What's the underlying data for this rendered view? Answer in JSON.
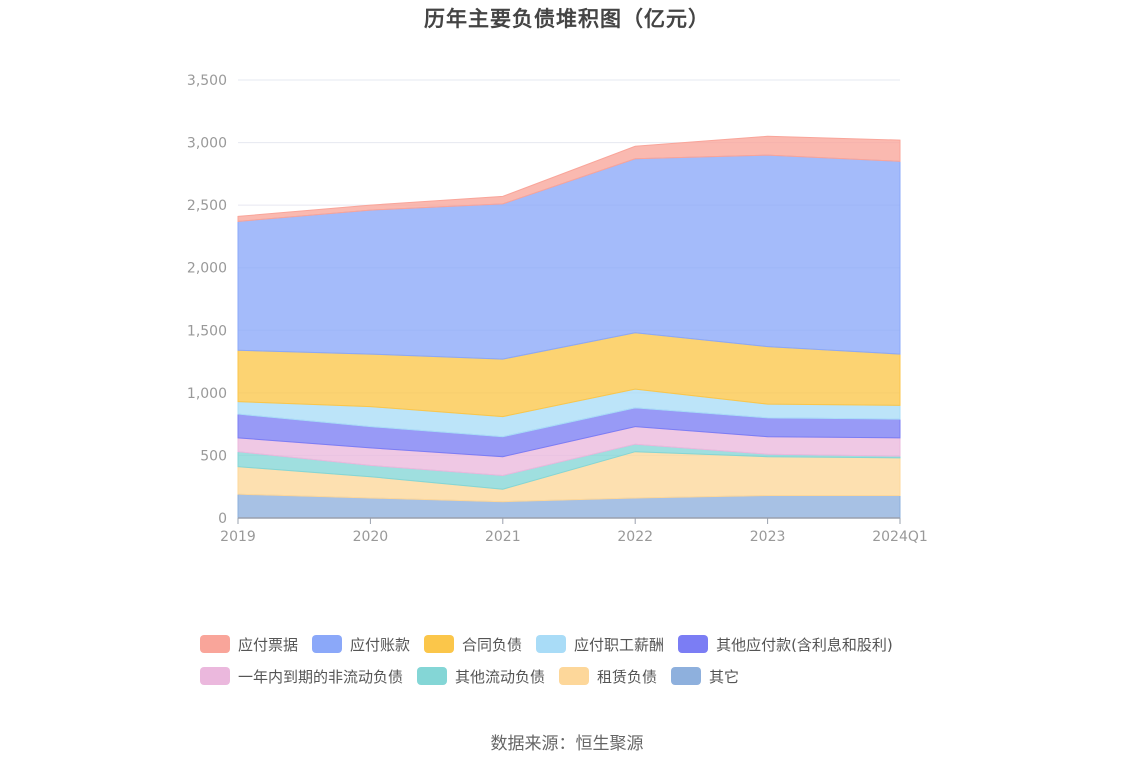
{
  "chart_data": {
    "type": "area",
    "stacked": true,
    "title": "历年主要负债堆积图（亿元）",
    "categories": [
      "2019",
      "2020",
      "2021",
      "2022",
      "2023",
      "2024Q1"
    ],
    "yticks": [
      "0",
      "500",
      "1,000",
      "1,500",
      "2,000",
      "2,500",
      "3,000",
      "3,500"
    ],
    "ylim": [
      0,
      3500
    ],
    "grid": true,
    "legend_position": "bottom",
    "series": [
      {
        "name": "其它",
        "color": "#8eb0dd",
        "values": [
          190,
          160,
          130,
          160,
          180,
          180
        ]
      },
      {
        "name": "租赁负债",
        "color": "#fdd79a",
        "values": [
          220,
          170,
          100,
          370,
          310,
          300
        ]
      },
      {
        "name": "其他流动负债",
        "color": "#84d6d6",
        "values": [
          120,
          90,
          110,
          60,
          20,
          15
        ]
      },
      {
        "name": "一年内到期的非流动负债",
        "color": "#ebb8dd",
        "values": [
          110,
          140,
          150,
          140,
          140,
          145
        ]
      },
      {
        "name": "其他应付款(含利息和股利)",
        "color": "#7b7df4",
        "values": [
          190,
          170,
          160,
          150,
          150,
          150
        ]
      },
      {
        "name": "应付职工薪酬",
        "color": "#a9dcf7",
        "values": [
          100,
          160,
          160,
          150,
          110,
          110
        ]
      },
      {
        "name": "合同负债",
        "color": "#fbc64a",
        "values": [
          410,
          420,
          460,
          450,
          460,
          410
        ]
      },
      {
        "name": "应付账款",
        "color": "#8ba8f9",
        "values": [
          1030,
          1150,
          1240,
          1390,
          1530,
          1540
        ]
      },
      {
        "name": "应付票据",
        "color": "#f9a59a",
        "values": [
          40,
          40,
          60,
          100,
          150,
          170
        ]
      }
    ]
  },
  "legend": {
    "row1": [
      {
        "label": "应付票据",
        "color": "#f9a59a"
      },
      {
        "label": "应付账款",
        "color": "#8ba8f9"
      },
      {
        "label": "合同负债",
        "color": "#fbc64a"
      },
      {
        "label": "应付职工薪酬",
        "color": "#a9dcf7"
      },
      {
        "label": "其他应付款(含利息和股利)",
        "color": "#7b7df4"
      }
    ],
    "row2": [
      {
        "label": "一年内到期的非流动负债",
        "color": "#ebb8dd"
      },
      {
        "label": "其他流动负债",
        "color": "#84d6d6"
      },
      {
        "label": "租赁负债",
        "color": "#fdd79a"
      },
      {
        "label": "其它",
        "color": "#8eb0dd"
      }
    ]
  },
  "source": "数据来源：恒生聚源"
}
